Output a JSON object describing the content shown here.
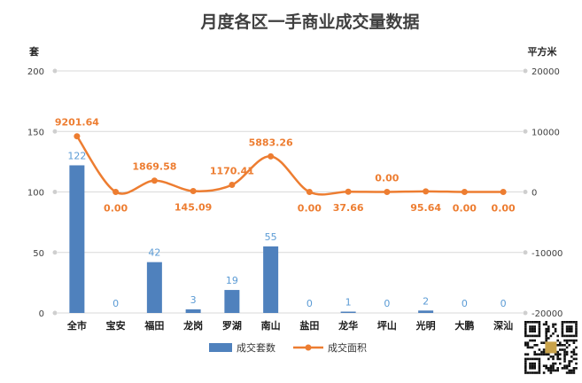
{
  "chart_data": {
    "type": "bar+line",
    "title": "月度各区一手商业成交量数据",
    "categories": [
      "全市",
      "宝安",
      "福田",
      "龙岗",
      "罗湖",
      "南山",
      "盐田",
      "龙华",
      "坪山",
      "光明",
      "大鹏",
      "深汕"
    ],
    "series": [
      {
        "name": "成交套数",
        "type": "bar",
        "axis": "left",
        "color": "#4f81bd",
        "values": [
          122,
          0,
          42,
          3,
          19,
          55,
          0,
          1,
          0,
          2,
          0,
          0
        ],
        "labels": [
          "122",
          "0",
          "42",
          "3",
          "19",
          "55",
          "0",
          "1",
          "0",
          "2",
          "0",
          "0"
        ]
      },
      {
        "name": "成交面积",
        "type": "line",
        "axis": "right",
        "color": "#ed7d31",
        "values": [
          9201.64,
          0.0,
          1869.58,
          145.09,
          1170.41,
          5883.26,
          0.0,
          37.66,
          0.0,
          95.64,
          0.0,
          0.0
        ],
        "labels": [
          "9201.64",
          "0.00",
          "1869.58",
          "145.09",
          "1170.41",
          "5883.26",
          "0.00",
          "37.66",
          "0.00",
          "95.64",
          "0.00",
          "0.00"
        ]
      }
    ],
    "y_left": {
      "unit": "套",
      "ylim": [
        0,
        200
      ],
      "ticks": [
        "0",
        "50",
        "100",
        "150",
        "200"
      ]
    },
    "y_right": {
      "unit": "平方米",
      "ylim": [
        -20000,
        20000
      ],
      "ticks": [
        "-20000",
        "-10000",
        "0",
        "10000",
        "20000"
      ]
    },
    "grid": true,
    "legend": "bottom"
  }
}
